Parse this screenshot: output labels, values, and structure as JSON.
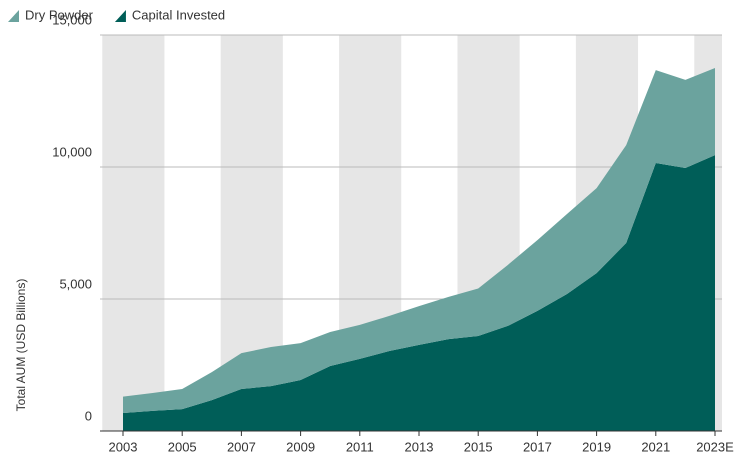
{
  "chart_data": {
    "type": "stacked_area",
    "y_label": "Total AUM (USD Billions)",
    "categories": [
      "2003",
      null,
      "2005",
      null,
      "2007",
      null,
      "2009",
      null,
      "2011",
      null,
      "2013",
      null,
      "2015",
      null,
      "2017",
      null,
      "2019",
      null,
      "2021",
      null,
      "2023E"
    ],
    "series": [
      {
        "name": "Dry Powder",
        "color": "#6ba39e",
        "values": [
          620,
          680,
          760,
          1060,
          1360,
          1480,
          1400,
          1290,
          1290,
          1330,
          1470,
          1600,
          1800,
          2310,
          2680,
          3030,
          3220,
          3710,
          3520,
          3340,
          3300
        ]
      },
      {
        "name": "Capital Invested",
        "color": "#005e58",
        "values": [
          680,
          760,
          830,
          1170,
          1590,
          1700,
          1930,
          2460,
          2730,
          3030,
          3260,
          3480,
          3600,
          3980,
          4550,
          5190,
          5980,
          7120,
          10150,
          9960,
          10450
        ]
      }
    ],
    "ylim": [
      0,
      15000
    ],
    "yticks": [
      0,
      {
        "value": 5000,
        "label": "5,000"
      },
      {
        "value": 10000,
        "label": "10,000"
      },
      {
        "value": 15000,
        "label": "15,000"
      }
    ],
    "grid": true
  }
}
